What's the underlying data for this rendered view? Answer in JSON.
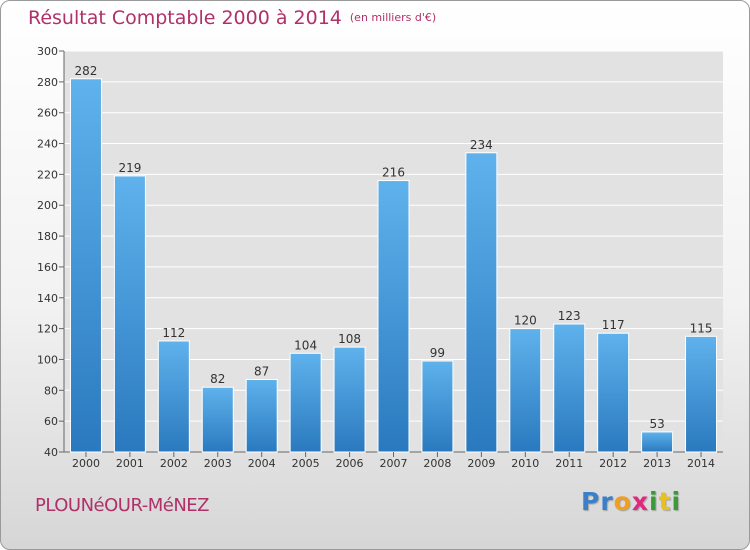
{
  "header": {
    "title": "Résultat Comptable 2000 à 2014",
    "subtitle": "(en milliers d'€)"
  },
  "footer": {
    "commune": "PLOUNéOUR-MéNEZ",
    "logo_letters": [
      "P",
      "r",
      "o",
      "x",
      "i",
      "t",
      "i"
    ],
    "logo_colors": [
      "#3a7fc8",
      "#3a7fc8",
      "#f0a020",
      "#e02880",
      "#3a9a3a",
      "#e8c020",
      "#3a9a3a"
    ]
  },
  "colors": {
    "title": "#b0306a",
    "bar_light": "#5fb2ec",
    "bar_dark": "#2a79bf",
    "grid": "#ffffff",
    "plot_bg": "#e2e2e2"
  },
  "chart_data": {
    "type": "bar",
    "title": "Résultat Comptable 2000 à 2014",
    "subtitle": "(en milliers d'€)",
    "xlabel": "",
    "ylabel": "",
    "ylim": [
      40,
      300
    ],
    "yticks": [
      40,
      60,
      80,
      100,
      120,
      140,
      160,
      180,
      200,
      220,
      240,
      260,
      280,
      300
    ],
    "categories": [
      "2000",
      "2001",
      "2002",
      "2003",
      "2004",
      "2005",
      "2006",
      "2007",
      "2008",
      "2009",
      "2010",
      "2011",
      "2012",
      "2013",
      "2014"
    ],
    "values": [
      282,
      219,
      112,
      82,
      87,
      104,
      108,
      216,
      99,
      234,
      120,
      123,
      117,
      53,
      115
    ],
    "grid": true
  }
}
